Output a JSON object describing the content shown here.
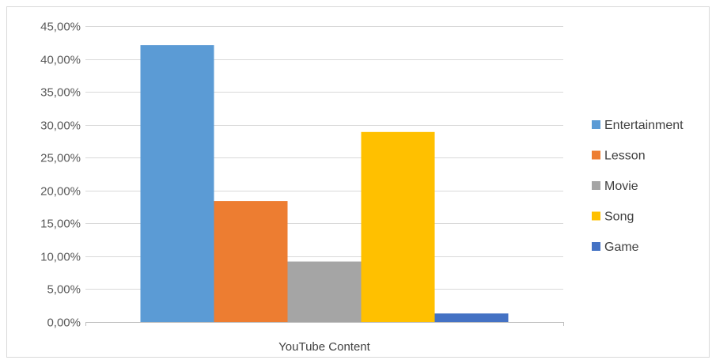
{
  "chart_data": {
    "type": "bar",
    "categories": [
      "YouTube Content"
    ],
    "series": [
      {
        "name": "Entertainment",
        "values": [
          42.1
        ],
        "color": "#5b9bd5"
      },
      {
        "name": "Lesson",
        "values": [
          18.4
        ],
        "color": "#ed7d31"
      },
      {
        "name": "Movie",
        "values": [
          9.2
        ],
        "color": "#a5a5a5"
      },
      {
        "name": "Song",
        "values": [
          28.9
        ],
        "color": "#ffc000"
      },
      {
        "name": "Game",
        "values": [
          1.3
        ],
        "color": "#4472c4"
      }
    ],
    "ylim": [
      0,
      45
    ],
    "yticks": [
      0,
      5,
      10,
      15,
      20,
      25,
      30,
      35,
      40,
      45
    ],
    "ytick_labels": [
      "0,00%",
      "5,00%",
      "10,00%",
      "15,00%",
      "20,00%",
      "25,00%",
      "30,00%",
      "35,00%",
      "40,00%",
      "45,00%"
    ],
    "grid": true,
    "legend_position": "right"
  }
}
